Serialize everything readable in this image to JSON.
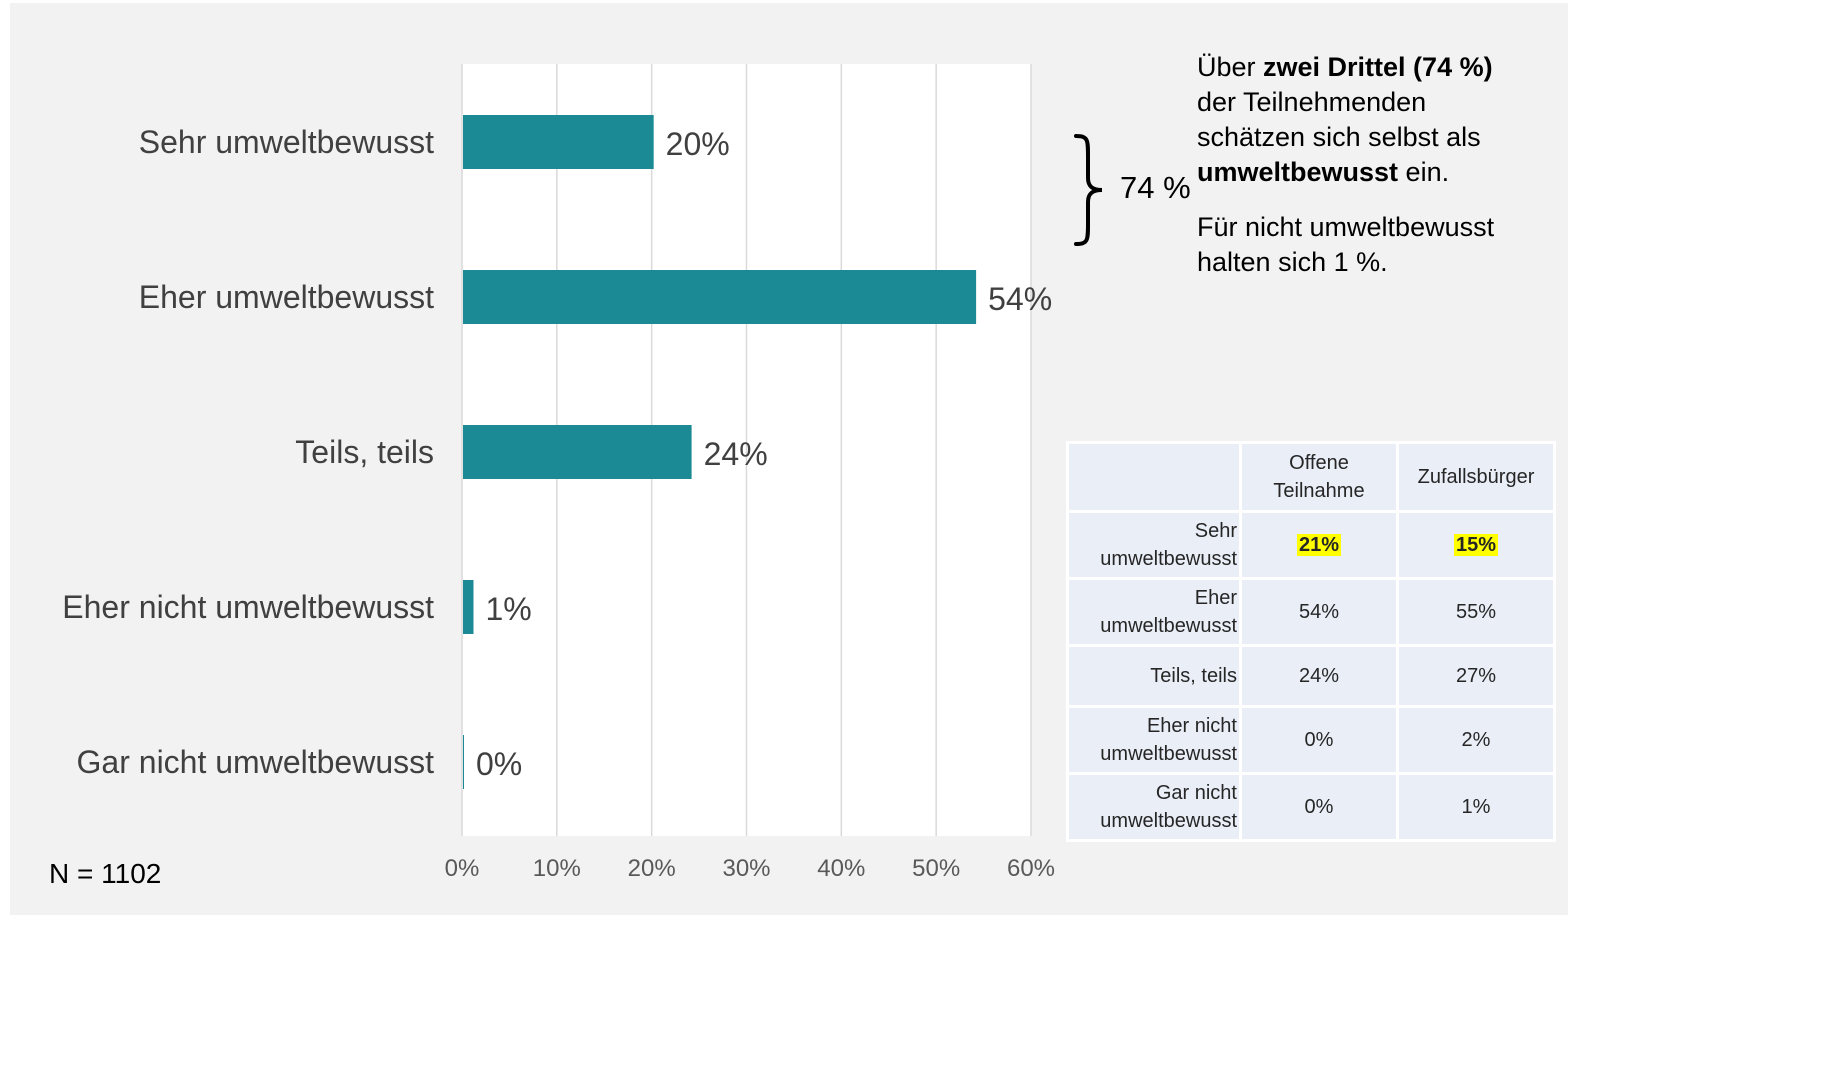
{
  "chart_data": {
    "type": "bar",
    "orientation": "horizontal",
    "categories": [
      "Sehr umweltbewusst",
      "Eher umweltbewusst",
      "Teils, teils",
      "Eher nicht umweltbewusst",
      "Gar nicht umweltbewusst"
    ],
    "values": [
      20,
      54,
      24,
      1,
      0
    ],
    "value_labels": [
      "20%",
      "54%",
      "24%",
      "1%",
      "0%"
    ],
    "xlim": [
      0,
      60
    ],
    "xticks": [
      0,
      10,
      20,
      30,
      40,
      50,
      60
    ],
    "xtick_labels": [
      "0%",
      "10%",
      "20%",
      "30%",
      "40%",
      "50%",
      "60%"
    ],
    "grid": "vertical",
    "bar_color": "#1b8a94"
  },
  "note": "N = 1102",
  "bracket": {
    "value": "74 %"
  },
  "summary": {
    "p1_a": "Über ",
    "p1_b": "zwei Drittel (74 %)",
    "p1_c": " der Teilnehmenden schätzen sich selbst als ",
    "p1_d": "umweltbewusst",
    "p1_e": " ein.",
    "p2": "Für nicht umweltbewusst halten sich 1 %."
  },
  "table": {
    "headers": [
      "",
      "Offene Teilnahme",
      "Zufallsbürger"
    ],
    "rows": [
      {
        "label": "Sehr umweltbewusst",
        "a": "21%",
        "b": "15%"
      },
      {
        "label": "Eher umweltbewusst",
        "a": "54%",
        "b": "55%"
      },
      {
        "label": "Teils, teils",
        "a": "24%",
        "b": "27%"
      },
      {
        "label": "Eher nicht umweltbewusst",
        "a": "0%",
        "b": "2%"
      },
      {
        "label": "Gar nicht umweltbewusst",
        "a": "0%",
        "b": "1%"
      }
    ],
    "highlight_color": "#ffff00"
  }
}
